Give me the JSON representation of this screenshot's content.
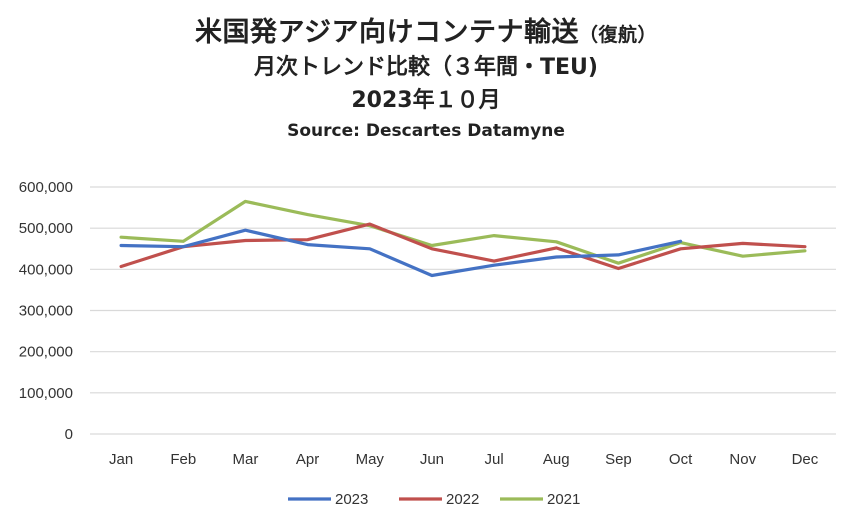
{
  "chart_data": {
    "type": "line",
    "title": "米国発アジア向けコンテナ輸送",
    "title_suffix": "（復航）",
    "subtitle": "月次トレンド比較（３年間・TEU)",
    "date_line": "2023年１０月",
    "source": "Source: Descartes Datamyne",
    "categories": [
      "Jan",
      "Feb",
      "Mar",
      "Apr",
      "May",
      "Jun",
      "Jul",
      "Aug",
      "Sep",
      "Oct",
      "Nov",
      "Dec"
    ],
    "ylim": [
      0,
      600000
    ],
    "yticks": [
      "0",
      "100,000",
      "200,000",
      "300,000",
      "400,000",
      "500,000",
      "600,000"
    ],
    "grid": true,
    "legend_position": "bottom",
    "series": [
      {
        "name": "2023",
        "color": "#4472C4",
        "values": [
          458000,
          455000,
          495000,
          460000,
          450000,
          385000,
          410000,
          430000,
          435000,
          468000,
          null,
          null
        ]
      },
      {
        "name": "2022",
        "color": "#C0504D",
        "values": [
          407000,
          455000,
          470000,
          472000,
          510000,
          450000,
          420000,
          452000,
          402000,
          450000,
          463000,
          455000
        ]
      },
      {
        "name": "2021",
        "color": "#9BBB59",
        "values": [
          478000,
          468000,
          565000,
          533000,
          506000,
          458000,
          482000,
          467000,
          415000,
          465000,
          432000,
          445000
        ]
      }
    ]
  }
}
